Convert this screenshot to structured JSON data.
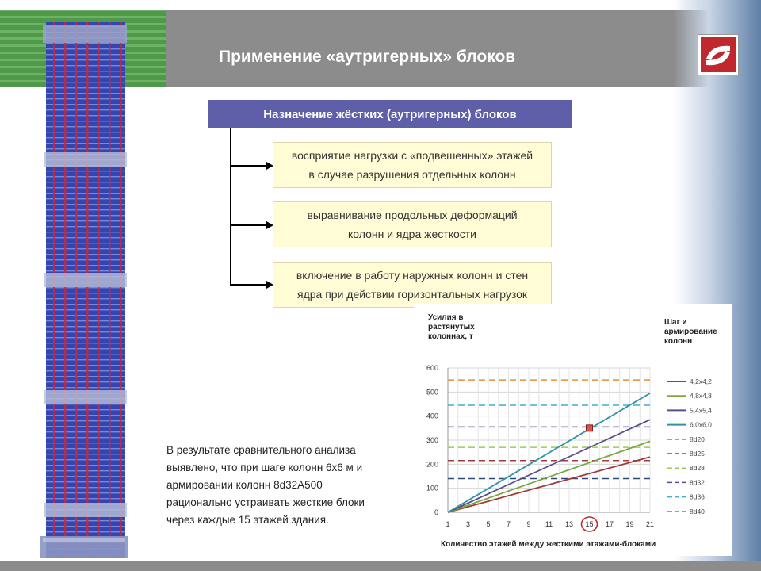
{
  "slide": {
    "title": "Применение «аутригерных» блоков",
    "purpose_header": "Назначение жёстких (аутригерных) блоков",
    "items": [
      {
        "line1": "восприятие нагрузки с «подвешенных» этажей",
        "line2": "в случае разрушения отдельных колонн"
      },
      {
        "line1": "выравнивание продольных деформаций",
        "line2": "колонн и ядра жесткости"
      },
      {
        "line1": "включение в работу наружных колонн и стен",
        "line2": "ядра при действии горизонтальных нагрузок"
      }
    ],
    "conclusion": [
      "В результате сравнительного анализа",
      "выявлено, что при шаге колонн 6х6 м и",
      "армировании колонн 8d32А500",
      "рационально устраивать жесткие блоки",
      "через каждые 15 этажей здания."
    ]
  },
  "colors": {
    "header_band": "#8c8c8c",
    "purpose_header_bg": "#5e5fa8",
    "item_box_bg": "#fffcd6",
    "logo_red": "#c0282d",
    "building_blue": "#3848b8",
    "building_red": "#cc2a3a"
  },
  "chart_data": {
    "type": "line",
    "ylabel": "Усилия в растянутых колоннах, т",
    "xlabel": "Количество этажей между жесткими этажами-блоками",
    "legend_title": "Шаг и армирование колонн",
    "legend_placement": "right",
    "ylim": [
      0,
      600
    ],
    "yticks": [
      0,
      100,
      200,
      300,
      400,
      500,
      600
    ],
    "xlim": [
      1,
      21
    ],
    "xticks": [
      1,
      3,
      5,
      7,
      9,
      11,
      13,
      15,
      17,
      19,
      21
    ],
    "highlighted_xtick": 15,
    "grid": true,
    "series": [
      {
        "name": "4,2x4,2",
        "kind": "line",
        "color": "#a33a3a",
        "x": [
          1,
          21
        ],
        "y": [
          0,
          230
        ]
      },
      {
        "name": "4,8x4,8",
        "kind": "line",
        "color": "#7aa83e",
        "x": [
          1,
          21
        ],
        "y": [
          0,
          295
        ]
      },
      {
        "name": "5,4x5,4",
        "kind": "line",
        "color": "#5a4e8a",
        "x": [
          1,
          21
        ],
        "y": [
          0,
          385
        ]
      },
      {
        "name": "6,0x6,0",
        "kind": "line",
        "color": "#2f93a8",
        "x": [
          1,
          21
        ],
        "y": [
          0,
          495
        ]
      },
      {
        "name": "8d20",
        "kind": "dashed",
        "color": "#2b4a7a",
        "y": 140
      },
      {
        "name": "8d25",
        "kind": "dashed",
        "color": "#a33a3a",
        "y": 215
      },
      {
        "name": "8d28",
        "kind": "dashed",
        "color": "#9acb52",
        "y": 270
      },
      {
        "name": "8d32",
        "kind": "dashed",
        "color": "#5a4e8a",
        "y": 355
      },
      {
        "name": "8d36",
        "kind": "dashed",
        "color": "#3fb1c8",
        "y": 445
      },
      {
        "name": "8d40",
        "kind": "dashed",
        "color": "#e0903a",
        "y": 550
      }
    ],
    "marker": {
      "x": 15,
      "y": 350,
      "color": "#d9534f"
    }
  }
}
